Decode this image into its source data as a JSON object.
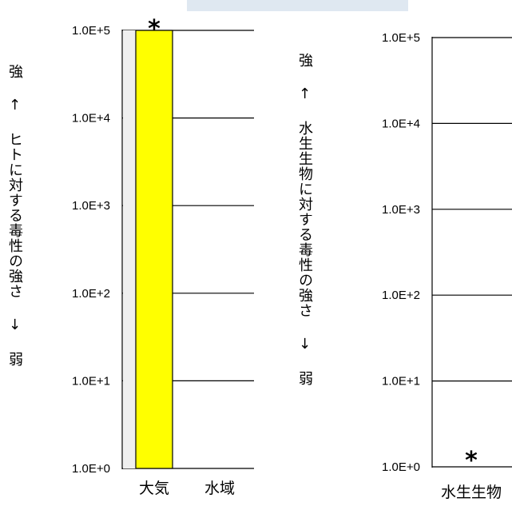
{
  "chart_data": [
    {
      "type": "bar",
      "scale": "log",
      "ylabel": "強 ↑ ヒトに対する毒性の強さ ↓ 弱",
      "yticks": [
        "1.0E+0",
        "1.0E+1",
        "1.0E+2",
        "1.0E+3",
        "1.0E+4",
        "1.0E+5"
      ],
      "ylim": [
        1,
        100000
      ],
      "grid": true,
      "categories": [
        "大気",
        "水域"
      ],
      "values": [
        100000,
        null
      ],
      "bar_color": "#ffff00",
      "annotations": [
        {
          "category": "大気",
          "text": "*"
        }
      ]
    },
    {
      "type": "bar",
      "scale": "log",
      "ylabel": "強 ↑ 水生生物に対する毒性の強さ ↓ 弱",
      "yticks": [
        "1.0E+0",
        "1.0E+1",
        "1.0E+2",
        "1.0E+3",
        "1.0E+4",
        "1.0E+5"
      ],
      "ylim": [
        1,
        100000
      ],
      "grid": true,
      "categories": [
        "水生生物"
      ],
      "values": [
        null
      ],
      "annotations": [
        {
          "category": "水生生物",
          "text": "*"
        }
      ]
    }
  ]
}
